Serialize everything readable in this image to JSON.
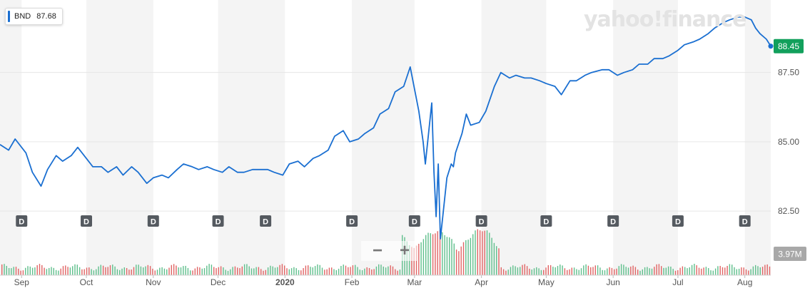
{
  "ticker": {
    "symbol": "BND",
    "value": "87.68"
  },
  "logo_text": "yahoo!finance",
  "last_price_tag": "88.45",
  "volume_tag": "3.97M",
  "zoom": {
    "minus": "−",
    "plus": "+"
  },
  "dividend_marker": "D",
  "colors": {
    "line": "#1a6fd1",
    "price_tag": "#12a05c",
    "volume_tag": "#a8a8a8",
    "volume_up": "#5fbf8c",
    "volume_down": "#e06464",
    "band": "#f4f4f4",
    "marker": "#555a60"
  },
  "chart_data": {
    "type": "line",
    "title": "",
    "xlabel": "",
    "ylabel": "",
    "ylim": [
      81.5,
      89.6
    ],
    "yticks": [
      82.5,
      85.0,
      87.5
    ],
    "ytick_labels": [
      "82.50",
      "85.00",
      "87.50"
    ],
    "x_range": [
      "2019-08-22",
      "2020-08-13"
    ],
    "xticks": [
      {
        "label": "Sep",
        "date": "2019-09-01"
      },
      {
        "label": "Oct",
        "date": "2019-10-01"
      },
      {
        "label": "Nov",
        "date": "2019-11-01"
      },
      {
        "label": "Dec",
        "date": "2019-12-01"
      },
      {
        "label": "2020",
        "date": "2020-01-01"
      },
      {
        "label": "Feb",
        "date": "2020-02-01"
      },
      {
        "label": "Mar",
        "date": "2020-03-01"
      },
      {
        "label": "Apr",
        "date": "2020-04-01"
      },
      {
        "label": "May",
        "date": "2020-05-01"
      },
      {
        "label": "Jun",
        "date": "2020-06-01"
      },
      {
        "label": "Jul",
        "date": "2020-07-01"
      },
      {
        "label": "Aug",
        "date": "2020-08-01"
      }
    ],
    "dividends": [
      "2019-09-01",
      "2019-10-01",
      "2019-11-01",
      "2019-12-01",
      "2019-12-23",
      "2020-02-01",
      "2020-03-01",
      "2020-04-01",
      "2020-05-01",
      "2020-06-01",
      "2020-07-01",
      "2020-08-01"
    ],
    "series": [
      {
        "x": [
          "2019-08-22",
          "2019-08-26",
          "2019-08-29",
          "2019-09-03",
          "2019-09-06",
          "2019-09-10",
          "2019-09-13",
          "2019-09-17",
          "2019-09-20",
          "2019-09-24",
          "2019-09-27",
          "2019-10-01",
          "2019-10-04",
          "2019-10-08",
          "2019-10-11",
          "2019-10-15",
          "2019-10-18",
          "2019-10-22",
          "2019-10-25",
          "2019-10-29",
          "2019-11-01",
          "2019-11-05",
          "2019-11-08",
          "2019-11-12",
          "2019-11-15",
          "2019-11-19",
          "2019-11-22",
          "2019-11-26",
          "2019-11-29",
          "2019-12-03",
          "2019-12-06",
          "2019-12-10",
          "2019-12-13",
          "2019-12-17",
          "2019-12-20",
          "2019-12-24",
          "2019-12-27",
          "2019-12-31",
          "2020-01-03",
          "2020-01-07",
          "2020-01-10",
          "2020-01-14",
          "2020-01-17",
          "2020-01-21",
          "2020-01-24",
          "2020-01-28",
          "2020-01-31",
          "2020-02-04",
          "2020-02-07",
          "2020-02-11",
          "2020-02-14",
          "2020-02-18",
          "2020-02-21",
          "2020-02-25",
          "2020-02-28",
          "2020-03-03",
          "2020-03-05",
          "2020-03-06",
          "2020-03-09",
          "2020-03-10",
          "2020-03-11",
          "2020-03-12",
          "2020-03-13",
          "2020-03-16",
          "2020-03-18",
          "2020-03-19",
          "2020-03-20",
          "2020-03-23",
          "2020-03-25",
          "2020-03-27",
          "2020-03-31",
          "2020-04-03",
          "2020-04-07",
          "2020-04-10",
          "2020-04-14",
          "2020-04-17",
          "2020-04-21",
          "2020-04-24",
          "2020-04-28",
          "2020-05-01",
          "2020-05-05",
          "2020-05-08",
          "2020-05-12",
          "2020-05-15",
          "2020-05-19",
          "2020-05-22",
          "2020-05-27",
          "2020-05-30",
          "2020-06-03",
          "2020-06-06",
          "2020-06-10",
          "2020-06-13",
          "2020-06-17",
          "2020-06-20",
          "2020-06-24",
          "2020-06-27",
          "2020-07-01",
          "2020-07-04",
          "2020-07-08",
          "2020-07-11",
          "2020-07-15",
          "2020-07-18",
          "2020-07-22",
          "2020-07-25",
          "2020-07-29",
          "2020-08-01",
          "2020-08-04",
          "2020-08-06",
          "2020-08-08",
          "2020-08-11",
          "2020-08-13"
        ],
        "values": [
          84.9,
          84.7,
          85.1,
          84.6,
          83.9,
          83.4,
          84.0,
          84.5,
          84.3,
          84.5,
          84.8,
          84.4,
          84.1,
          84.1,
          83.9,
          84.1,
          83.8,
          84.1,
          83.9,
          83.5,
          83.7,
          83.8,
          83.7,
          84.0,
          84.2,
          84.1,
          84.0,
          84.1,
          84.0,
          83.9,
          84.1,
          83.9,
          83.9,
          84.0,
          84.0,
          84.0,
          83.9,
          83.8,
          84.2,
          84.3,
          84.1,
          84.4,
          84.5,
          84.7,
          85.2,
          85.4,
          85.0,
          85.1,
          85.3,
          85.5,
          86.0,
          86.2,
          86.8,
          87.0,
          87.7,
          86.1,
          85.0,
          84.2,
          86.4,
          83.9,
          82.3,
          84.2,
          81.5,
          83.7,
          84.2,
          84.1,
          84.6,
          85.3,
          86.0,
          85.6,
          85.7,
          86.1,
          87.0,
          87.5,
          87.3,
          87.4,
          87.3,
          87.3,
          87.2,
          87.1,
          87.0,
          86.7,
          87.2,
          87.2,
          87.4,
          87.5,
          87.6,
          87.6,
          87.4,
          87.5,
          87.6,
          87.8,
          87.8,
          88.0,
          88.0,
          88.1,
          88.3,
          88.5,
          88.6,
          88.7,
          88.9,
          89.1,
          89.3,
          89.4,
          89.5,
          89.5,
          89.4,
          89.1,
          88.9,
          88.7,
          88.45
        ]
      }
    ]
  }
}
